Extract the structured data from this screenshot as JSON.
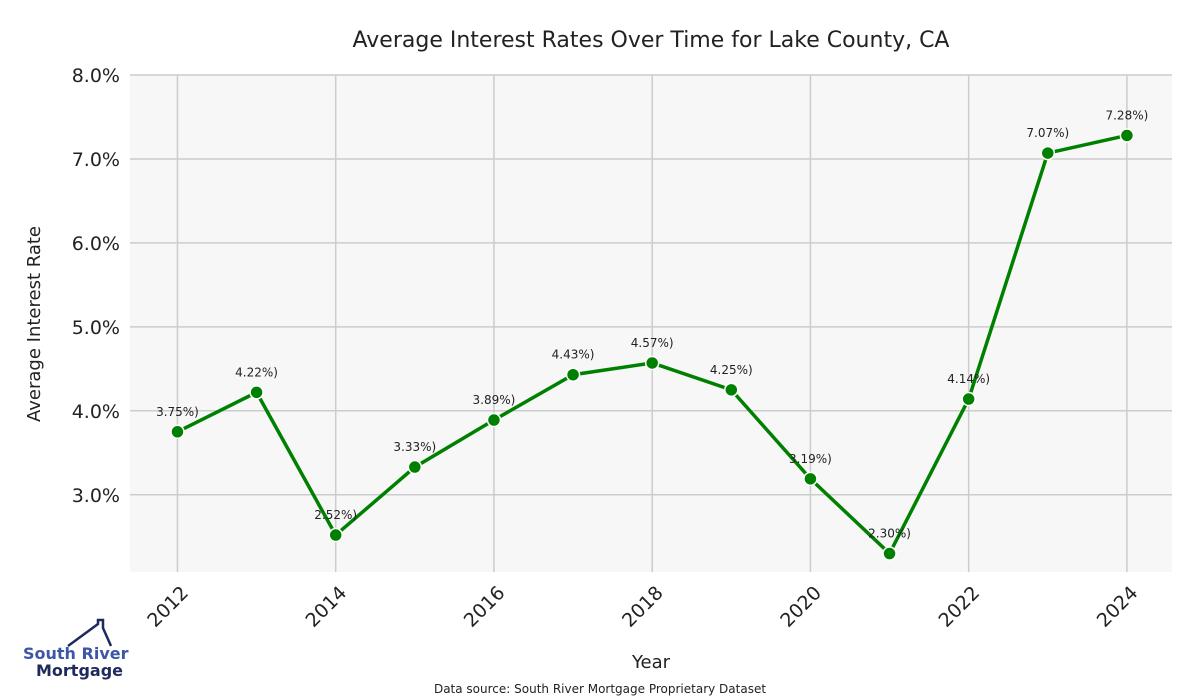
{
  "chart_data": {
    "type": "line",
    "title": "Average Interest Rates Over Time for Lake County, CA",
    "xlabel": "Year",
    "ylabel": "Average Interest Rate",
    "x": [
      2012,
      2013,
      2014,
      2015,
      2016,
      2017,
      2018,
      2019,
      2020,
      2021,
      2022,
      2023,
      2024
    ],
    "series": [
      {
        "name": "Average Interest Rate",
        "values": [
          3.75,
          4.22,
          2.52,
          3.33,
          3.89,
          4.43,
          4.57,
          4.25,
          3.19,
          2.3,
          4.14,
          7.07,
          7.28
        ],
        "color": "#008000"
      }
    ],
    "data_labels": [
      "3.75%)",
      "4.22%)",
      "2.52%)",
      "3.33%)",
      "3.89%)",
      "4.43%)",
      "4.57%)",
      "4.25%)",
      "3.19%)",
      "2.30%)",
      "4.14%)",
      "7.07%)",
      "7.28%)"
    ],
    "x_ticks": [
      "2012",
      "2014",
      "2016",
      "2018",
      "2020",
      "2022",
      "2024"
    ],
    "y_ticks": [
      "3.0%",
      "4.0%",
      "5.0%",
      "6.0%",
      "7.0%",
      "8.0%"
    ],
    "y_tick_values": [
      3,
      4,
      5,
      6,
      7,
      8
    ],
    "xlim": [
      2011.4,
      2024.57
    ],
    "ylim": [
      2.08,
      8.0
    ],
    "grid": true,
    "legend": "none"
  },
  "source_note": "Data source: South River Mortgage Proprietary Dataset",
  "logo": {
    "line1": "South River",
    "line2": "Mortgage"
  }
}
